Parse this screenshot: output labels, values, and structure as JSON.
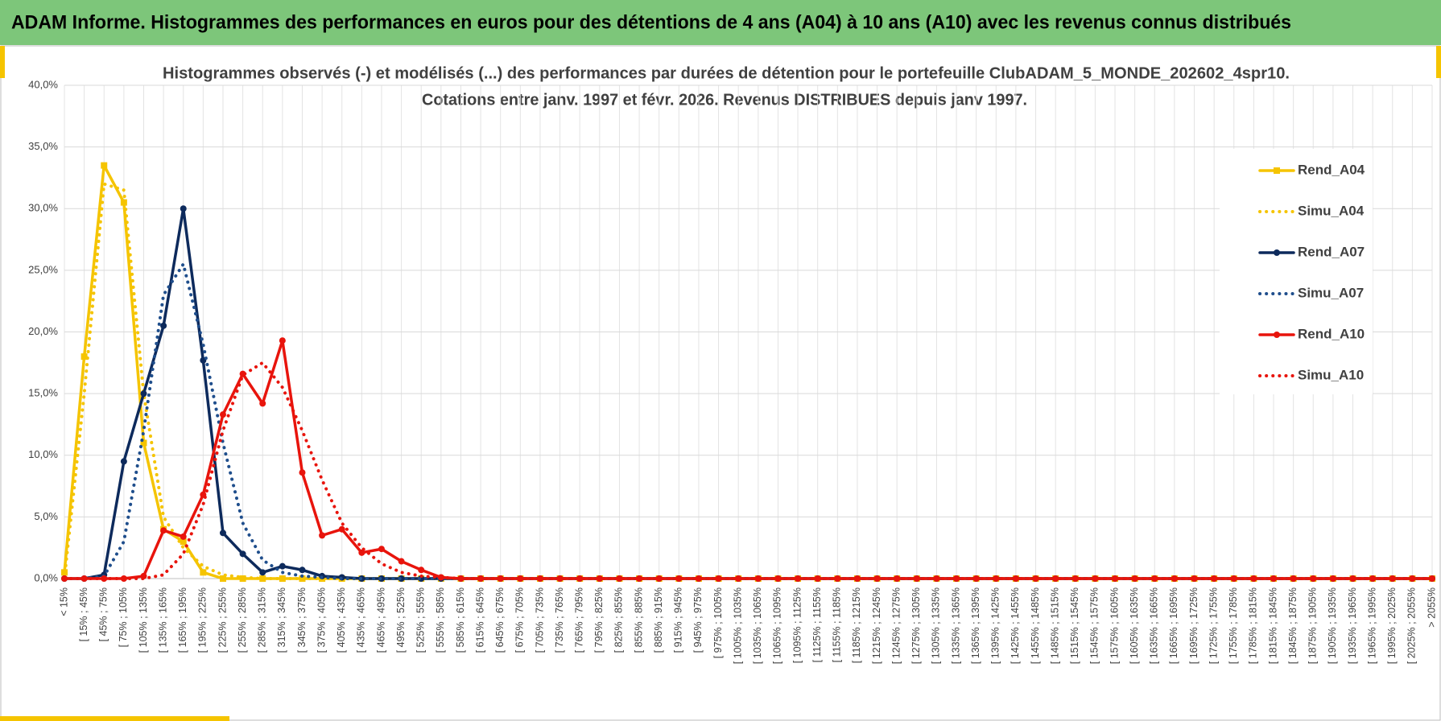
{
  "header": {
    "title": "ADAM Informe. Histogrammes des performances en euros pour des détentions de 4 ans (A04) à 10 ans (A10) avec les revenus connus distribués"
  },
  "chart_data": {
    "type": "line",
    "title": "Histogrammes observés (-) et modélisés (...) des performances par durées de détention pour le portefeuille ClubADAM_5_MONDE_202602_4spr10.",
    "subtitle": "Cotations entre janv. 1997 et févr. 2026. Revenus DISTRIBUES depuis janv 1997.",
    "categories": [
      "< 15%",
      "[ 15% ; 45%",
      "[ 45% ; 75%",
      "[ 75% ; 105%",
      "[ 105% ; 135%",
      "[ 135% ; 165%",
      "[ 165% ; 195%",
      "[ 195% ; 225%",
      "[ 225% ; 255%",
      "[ 255% ; 285%",
      "[ 285% ; 315%",
      "[ 315% ; 345%",
      "[ 345% ; 375%",
      "[ 375% ; 405%",
      "[ 405% ; 435%",
      "[ 435% ; 465%",
      "[ 465% ; 495%",
      "[ 495% ; 525%",
      "[ 525% ; 555%",
      "[ 555% ; 585%",
      "[ 585% ; 615%",
      "[ 615% ; 645%",
      "[ 645% ; 675%",
      "[ 675% ; 705%",
      "[ 705% ; 735%",
      "[ 735% ; 765%",
      "[ 765% ; 795%",
      "[ 795% ; 825%",
      "[ 825% ; 855%",
      "[ 855% ; 885%",
      "[ 885% ; 915%",
      "[ 915% ; 945%",
      "[ 945% ; 975%",
      "[ 975% ; 1005%",
      "[ 1005% ; 1035%",
      "[ 1035% ; 1065%",
      "[ 1065% ; 1095%",
      "[ 1095% ; 1125%",
      "[ 1125% ; 1155%",
      "[ 1155% ; 1185%",
      "[ 1185% ; 1215%",
      "[ 1215% ; 1245%",
      "[ 1245% ; 1275%",
      "[ 1275% ; 1305%",
      "[ 1305% ; 1335%",
      "[ 1335% ; 1365%",
      "[ 1365% ; 1395%",
      "[ 1395% ; 1425%",
      "[ 1425% ; 1455%",
      "[ 1455% ; 1485%",
      "[ 1485% ; 1515%",
      "[ 1515% ; 1545%",
      "[ 1545% ; 1575%",
      "[ 1575% ; 1605%",
      "[ 1605% ; 1635%",
      "[ 1635% ; 1665%",
      "[ 1665% ; 1695%",
      "[ 1695% ; 1725%",
      "[ 1725% ; 1755%",
      "[ 1755% ; 1785%",
      "[ 1785% ; 1815%",
      "[ 1815% ; 1845%",
      "[ 1845% ; 1875%",
      "[ 1875% ; 1905%",
      "[ 1905% ; 1935%",
      "[ 1935% ; 1965%",
      "[ 1965% ; 1995%",
      "[ 1995% ; 2025%",
      "[ 2025% ; 2055%",
      "> 2055%"
    ],
    "series": [
      {
        "name": "Rend_A04",
        "color": "#f5c400",
        "style": "solid",
        "marker": "square",
        "values": [
          0.5,
          18,
          33.5,
          30.5,
          11,
          4,
          3,
          0.5,
          0,
          0,
          0,
          0,
          0,
          0,
          0,
          0,
          0,
          0,
          0,
          0,
          0,
          0,
          0,
          0,
          0,
          0,
          0,
          0,
          0,
          0,
          0,
          0,
          0,
          0,
          0,
          0,
          0,
          0,
          0,
          0,
          0,
          0,
          0,
          0,
          0,
          0,
          0,
          0,
          0,
          0,
          0,
          0,
          0,
          0,
          0,
          0,
          0,
          0,
          0,
          0,
          0,
          0,
          0,
          0,
          0,
          0,
          0,
          0,
          0,
          0
        ]
      },
      {
        "name": "Simu_A04",
        "color": "#f5c400",
        "style": "dotted",
        "marker": "none",
        "values": [
          0,
          15,
          32,
          31.5,
          15,
          5,
          2.5,
          1,
          0.3,
          0.1,
          0,
          0,
          0,
          0,
          0,
          0,
          0,
          0,
          0,
          0,
          0,
          0,
          0,
          0,
          0,
          0,
          0,
          0,
          0,
          0,
          0,
          0,
          0,
          0,
          0,
          0,
          0,
          0,
          0,
          0,
          0,
          0,
          0,
          0,
          0,
          0,
          0,
          0,
          0,
          0,
          0,
          0,
          0,
          0,
          0,
          0,
          0,
          0,
          0,
          0,
          0,
          0,
          0,
          0,
          0,
          0,
          0,
          0,
          0,
          0
        ]
      },
      {
        "name": "Rend_A07",
        "color": "#0d2a5c",
        "style": "solid",
        "marker": "circle",
        "values": [
          0,
          0,
          0.3,
          9.5,
          15,
          20.5,
          30,
          17.7,
          3.7,
          2,
          0.5,
          1,
          0.7,
          0.2,
          0.1,
          0,
          0,
          0,
          0,
          0,
          0,
          0,
          0,
          0,
          0,
          0,
          0,
          0,
          0,
          0,
          0,
          0,
          0,
          0,
          0,
          0,
          0,
          0,
          0,
          0,
          0,
          0,
          0,
          0,
          0,
          0,
          0,
          0,
          0,
          0,
          0,
          0,
          0,
          0,
          0,
          0,
          0,
          0,
          0,
          0,
          0,
          0,
          0,
          0,
          0,
          0,
          0,
          0,
          0,
          0
        ]
      },
      {
        "name": "Simu_A07",
        "color": "#1f4e8c",
        "style": "dotted",
        "marker": "none",
        "values": [
          0,
          0,
          0.2,
          3,
          12,
          23,
          25.5,
          19,
          11,
          4.5,
          1.5,
          0.5,
          0.2,
          0.1,
          0,
          0,
          0,
          0,
          0,
          0,
          0,
          0,
          0,
          0,
          0,
          0,
          0,
          0,
          0,
          0,
          0,
          0,
          0,
          0,
          0,
          0,
          0,
          0,
          0,
          0,
          0,
          0,
          0,
          0,
          0,
          0,
          0,
          0,
          0,
          0,
          0,
          0,
          0,
          0,
          0,
          0,
          0,
          0,
          0,
          0,
          0,
          0,
          0,
          0,
          0,
          0,
          0,
          0,
          0,
          0
        ]
      },
      {
        "name": "Rend_A10",
        "color": "#e8140c",
        "style": "solid",
        "marker": "circle",
        "values": [
          0,
          0,
          0,
          0,
          0.2,
          3.9,
          3.4,
          6.8,
          13.3,
          16.6,
          14.2,
          19.3,
          8.6,
          3.5,
          4,
          2.1,
          2.4,
          1.4,
          0.7,
          0.1,
          0,
          0,
          0,
          0,
          0,
          0,
          0,
          0,
          0,
          0,
          0,
          0,
          0,
          0,
          0,
          0,
          0,
          0,
          0,
          0,
          0,
          0,
          0,
          0,
          0,
          0,
          0,
          0,
          0,
          0,
          0,
          0,
          0,
          0,
          0,
          0,
          0,
          0,
          0,
          0,
          0,
          0,
          0,
          0,
          0,
          0,
          0,
          0,
          0,
          0
        ]
      },
      {
        "name": "Simu_A10",
        "color": "#e8140c",
        "style": "dotted",
        "marker": "none",
        "values": [
          0,
          0,
          0,
          0,
          0,
          0.3,
          2,
          6,
          12,
          16.5,
          17.5,
          15.5,
          12,
          8,
          4.5,
          2.5,
          1.2,
          0.5,
          0.2,
          0.1,
          0,
          0,
          0,
          0,
          0,
          0,
          0,
          0,
          0,
          0,
          0,
          0,
          0,
          0,
          0,
          0,
          0,
          0,
          0,
          0,
          0,
          0,
          0,
          0,
          0,
          0,
          0,
          0,
          0,
          0,
          0,
          0,
          0,
          0,
          0,
          0,
          0,
          0,
          0,
          0,
          0,
          0,
          0,
          0,
          0,
          0,
          0,
          0,
          0,
          0
        ]
      }
    ],
    "ylim": [
      0,
      40
    ],
    "yticks": [
      {
        "value": 0,
        "label": "0,0%"
      },
      {
        "value": 5,
        "label": "5,0%"
      },
      {
        "value": 10,
        "label": "10,0%"
      },
      {
        "value": 15,
        "label": "15,0%"
      },
      {
        "value": 20,
        "label": "20,0%"
      },
      {
        "value": 25,
        "label": "25,0%"
      },
      {
        "value": 30,
        "label": "30,0%"
      },
      {
        "value": 35,
        "label": "35,0%"
      },
      {
        "value": 40,
        "label": "40,0%"
      }
    ],
    "grid": true,
    "legend": "right"
  }
}
